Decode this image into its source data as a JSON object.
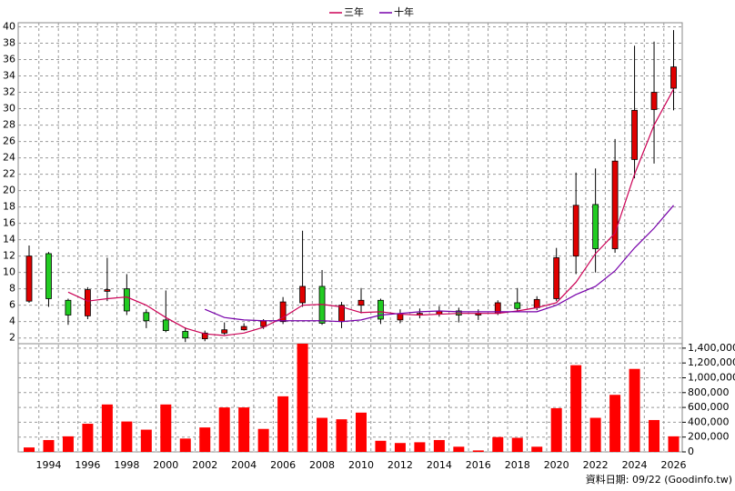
{
  "chart_data": {
    "type": "candlestick",
    "categories": [
      null,
      "1994",
      null,
      "1996",
      null,
      "1998",
      null,
      "2000",
      null,
      "2002",
      null,
      "2004",
      null,
      "2006",
      null,
      "2008",
      null,
      "2010",
      null,
      "2012",
      null,
      "2014",
      null,
      "2016",
      null,
      "2018",
      null,
      "2020",
      null,
      "2022",
      null,
      "2024",
      null,
      "2026"
    ],
    "open": [
      6.5,
      12.3,
      6.6,
      4.7,
      7.7,
      8.0,
      5.1,
      4.2,
      2.8,
      1.9,
      2.6,
      3.0,
      3.4,
      4.0,
      6.3,
      8.3,
      4.0,
      6.0,
      6.6,
      4.2,
      4.8,
      4.9,
      5.3,
      4.8,
      5.0,
      6.3,
      5.7,
      6.8,
      12.0,
      18.3,
      12.9,
      23.8,
      29.9,
      32.5
    ],
    "high": [
      13.3,
      12.5,
      6.8,
      8.2,
      11.8,
      9.8,
      5.5,
      7.8,
      3.3,
      2.9,
      3.9,
      3.8,
      4.3,
      7.0,
      15.1,
      10.3,
      6.4,
      8.1,
      6.8,
      5.5,
      5.6,
      5.9,
      5.7,
      5.5,
      6.6,
      8.1,
      7.1,
      13.0,
      22.2,
      22.7,
      26.3,
      37.7,
      38.2,
      39.6
    ],
    "low": [
      6.3,
      5.8,
      3.6,
      4.3,
      6.5,
      4.8,
      3.2,
      2.7,
      1.5,
      1.6,
      2.4,
      2.9,
      3.1,
      3.7,
      5.8,
      3.6,
      3.2,
      5.0,
      3.7,
      3.8,
      4.4,
      4.6,
      3.9,
      4.2,
      4.8,
      5.3,
      5.4,
      6.5,
      9.8,
      10.0,
      12.4,
      21.5,
      23.3,
      29.8
    ],
    "close": [
      12.0,
      6.8,
      4.8,
      7.9,
      7.9,
      5.3,
      4.1,
      2.9,
      2.0,
      2.6,
      3.0,
      3.4,
      4.1,
      6.4,
      8.3,
      3.8,
      6.0,
      6.6,
      4.3,
      4.9,
      5.0,
      5.3,
      4.8,
      5.0,
      6.3,
      5.6,
      6.7,
      11.8,
      18.2,
      12.9,
      23.6,
      29.8,
      32.0,
      35.1
    ],
    "up_color": "#e00000",
    "down_color": "#22cc22",
    "series": [
      {
        "name": "三年",
        "color": "#cc0055",
        "values": [
          null,
          null,
          7.6,
          6.5,
          6.8,
          7.0,
          6.0,
          4.5,
          3.2,
          2.5,
          2.3,
          2.6,
          3.3,
          4.5,
          6.0,
          6.1,
          5.8,
          5.1,
          5.2,
          4.9,
          4.8,
          4.9,
          5.0,
          5.0,
          5.0,
          5.3,
          5.7,
          6.3,
          8.8,
          12.3,
          14.8,
          22.0,
          28.0,
          32.4
        ]
      },
      {
        "name": "十年",
        "color": "#7700aa",
        "values": [
          null,
          null,
          null,
          null,
          null,
          null,
          null,
          null,
          null,
          5.5,
          4.5,
          4.2,
          4.1,
          4.1,
          4.1,
          4.1,
          4.0,
          4.2,
          4.8,
          5.0,
          5.2,
          5.3,
          5.2,
          5.2,
          5.2,
          5.2,
          5.2,
          6.0,
          7.3,
          8.3,
          10.2,
          13.0,
          15.4,
          18.2
        ]
      }
    ],
    "ylim": [
      1.3,
      40.5
    ],
    "yticks": [
      2,
      4,
      6,
      8,
      10,
      12,
      14,
      16,
      18,
      20,
      22,
      24,
      26,
      28,
      30,
      32,
      34,
      36,
      38,
      40
    ],
    "grid": true,
    "volume": {
      "color": "#ff0000",
      "values": [
        60000,
        160000,
        210000,
        380000,
        640000,
        410000,
        300000,
        640000,
        180000,
        330000,
        600000,
        600000,
        310000,
        750000,
        1460000,
        460000,
        440000,
        530000,
        150000,
        120000,
        130000,
        160000,
        70000,
        20000,
        200000,
        190000,
        70000,
        590000,
        1170000,
        460000,
        770000,
        1120000,
        430000,
        210000
      ],
      "ylim": [
        0,
        1460000
      ],
      "yticks": [
        0,
        {
          "value": 200000,
          "label": "200,000"
        },
        {
          "value": 400000,
          "label": "400,000"
        },
        {
          "value": 600000,
          "label": "600,000"
        },
        {
          "value": 800000,
          "label": "800,000"
        },
        {
          "value": 1000000,
          "label": "1,000,000"
        },
        {
          "value": 1200000,
          "label": "1,200,000"
        },
        {
          "value": 1400000,
          "label": "1,400,000"
        }
      ]
    },
    "source_note": "資料日期: 09/22  (Goodinfo.tw)"
  }
}
